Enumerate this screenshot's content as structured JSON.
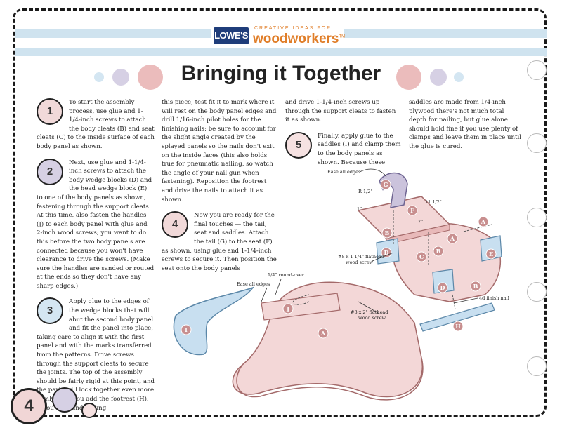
{
  "header": {
    "logo_text": "LOWE'S",
    "tagline_small": "CREATIVE IDEAS FOR",
    "tagline_big": "woodworkers",
    "tagline_mark": "TM"
  },
  "title": "Bringing it Together",
  "steps": [
    {
      "number": "1",
      "text": "To start the assembly process, use glue and 1-1/4-inch screws to attach the body cleats (B) and seat cleats (C) to the inside surface of each body panel as shown."
    },
    {
      "number": "2",
      "text": "Next, use glue and 1-1/4-inch screws to attach the body wedge blocks (D) and the head wedge block (E) to one of the body panels as shown, fastening through the support cleats. At this time, also fasten the handles (J) to each body panel with glue and 2-inch wood screws; you want to do this before the two body panels are connected because you won't have clearance to drive the screws. (Make sure the handles are sanded or routed at the ends so they don't have any sharp edges.)"
    },
    {
      "number": "3",
      "text": "Apply glue to the edges of the wedge blocks that will abut the second body panel and fit the panel into place, taking care to align it with the first panel and with the marks transferred from the patterns. Drive screws through the support cleats to secure the joints. The top of the assembly should be fairly rigid at this point, and the parts will lock together even more firmly after you add the footrest (H). If you are hand-nailing"
    },
    {
      "number": "",
      "text": "this piece, test fit it to mark where it will rest on the body panel edges and drill 1/16-inch pilot holes for the finishing nails; be sure to account for the slight angle created by the splayed panels so the nails don't exit on the inside faces (this also holds true for pneumatic nailing, so watch the angle of your nail gun when fastening). Reposition the footrest and drive the nails to attach it as shown."
    },
    {
      "number": "4",
      "text": "Now you are ready for the final touches — the tail, seat and saddles. Attach the tail (G) to the seat (F) as shown, using glue and 1-1/4-inch screws to secure it. Then position the seat onto the body panels"
    },
    {
      "number": "",
      "text": "and drive 1-1/4-inch screws up through the support cleats to fasten it as shown."
    },
    {
      "number": "5",
      "text": "Finally, apply glue to the saddles (I) and clamp them to the body panels as shown. Because these"
    },
    {
      "number": "",
      "text": "saddles are made from 1/4-inch plywood there's not much total depth for nailing, but glue alone should hold fine if you use plenty of clamps and leave them in place until the glue is cured."
    }
  ],
  "diagram": {
    "labels": {
      "ease_edges_top": "Ease all edges",
      "radius": "R 1/2\"",
      "dim_11": "11 1/2\"",
      "dim_7": "7\"",
      "dim_1": "1\"",
      "screw_1_1_4": "#8 x 1 1/4\" flathead",
      "wood_screw_1": "wood screw",
      "round_over": "1/4\" round-over",
      "ease_edges_left": "Ease all edges",
      "screw_2": "#8 x 2\" flathead",
      "wood_screw_2": "wood screw",
      "finish_nail": "4d finish nail"
    },
    "part_letters": [
      "A",
      "B",
      "C",
      "D",
      "E",
      "F",
      "G",
      "H",
      "I",
      "J"
    ]
  },
  "page_number": "4",
  "colors": {
    "stripe": "#cfe3ef",
    "pink": "#e8b9b9",
    "lavender": "#cbc3dc",
    "blue": "#c8dff0",
    "accent_orange": "#e07e29",
    "logo_blue": "#1f3d7a"
  }
}
